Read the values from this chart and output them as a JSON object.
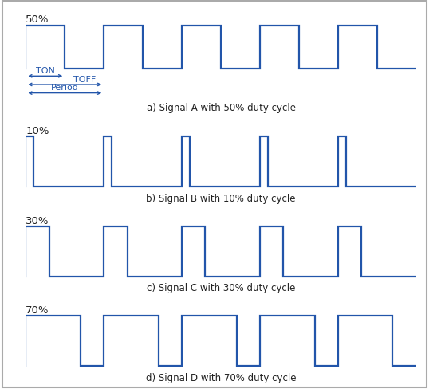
{
  "background_color": "#ffffff",
  "signal_color": "#2255aa",
  "line_width": 1.6,
  "signals": [
    {
      "duty": 0.5,
      "label": "a) Signal A with 50% duty cycle",
      "pct_label": "50%",
      "show_annotations": true
    },
    {
      "duty": 0.1,
      "label": "b) Signal B with 10% duty cycle",
      "pct_label": "10%",
      "show_annotations": false
    },
    {
      "duty": 0.3,
      "label": "c) Signal C with 30% duty cycle",
      "pct_label": "30%",
      "show_annotations": false
    },
    {
      "duty": 0.7,
      "label": "d) Signal D with 70% duty cycle",
      "pct_label": "70%",
      "show_annotations": false
    }
  ],
  "num_cycles": 5,
  "arrow_color": "#2255aa",
  "text_color": "#222222",
  "annot_color": "#2255aa",
  "font_size": 8.5,
  "pct_font_size": 9.5,
  "label_font_size": 8.5,
  "border_color": "#aaaaaa"
}
